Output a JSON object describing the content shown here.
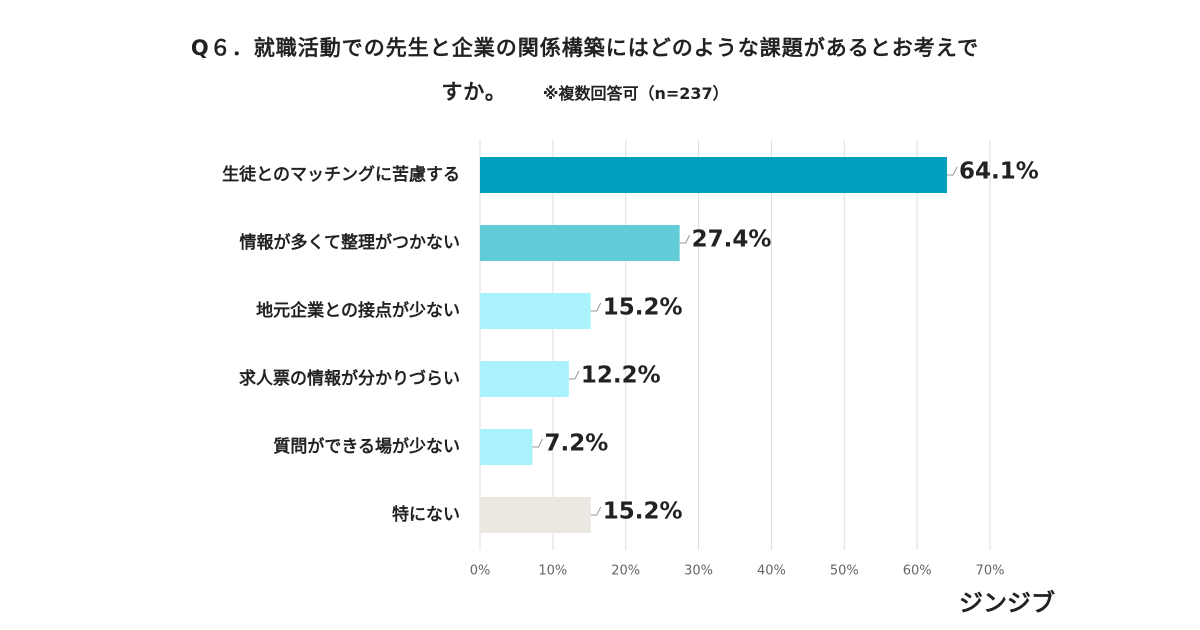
{
  "chart_data": {
    "type": "hbar",
    "title": "Q６．就職活動での先生と企業の関係構築にはどのような課題があるとお考えですか。",
    "subtitle": "※複数回答可（n=237）",
    "categories": [
      "生徒とのマッチングに苦慮する",
      "情報が多くて整理がつかない",
      "地元企業との接点が少ない",
      "求人票の情報が分かりづらい",
      "質問ができる場が少ない",
      "特にない"
    ],
    "values": [
      64.1,
      27.4,
      15.2,
      12.2,
      7.2,
      15.2
    ],
    "value_labels": [
      "64.1%",
      "27.4%",
      "15.2%",
      "12.2%",
      "7.2%",
      "15.2%"
    ],
    "colors": [
      "#00a0be",
      "#62cbd8",
      "#aaf2fc",
      "#aaf2fc",
      "#aaf2fc",
      "#ebe8e2"
    ],
    "xlim": [
      0,
      70
    ],
    "xticks": [
      {
        "value": 0,
        "label": "0%"
      },
      {
        "value": 10,
        "label": "10%"
      },
      {
        "value": 20,
        "label": "20%"
      },
      {
        "value": 30,
        "label": "30%"
      },
      {
        "value": 40,
        "label": "40%"
      },
      {
        "value": 50,
        "label": "50%"
      },
      {
        "value": 60,
        "label": "60%"
      },
      {
        "value": 70,
        "label": "70%"
      }
    ],
    "grid": true,
    "logo": "ジンジブ"
  }
}
